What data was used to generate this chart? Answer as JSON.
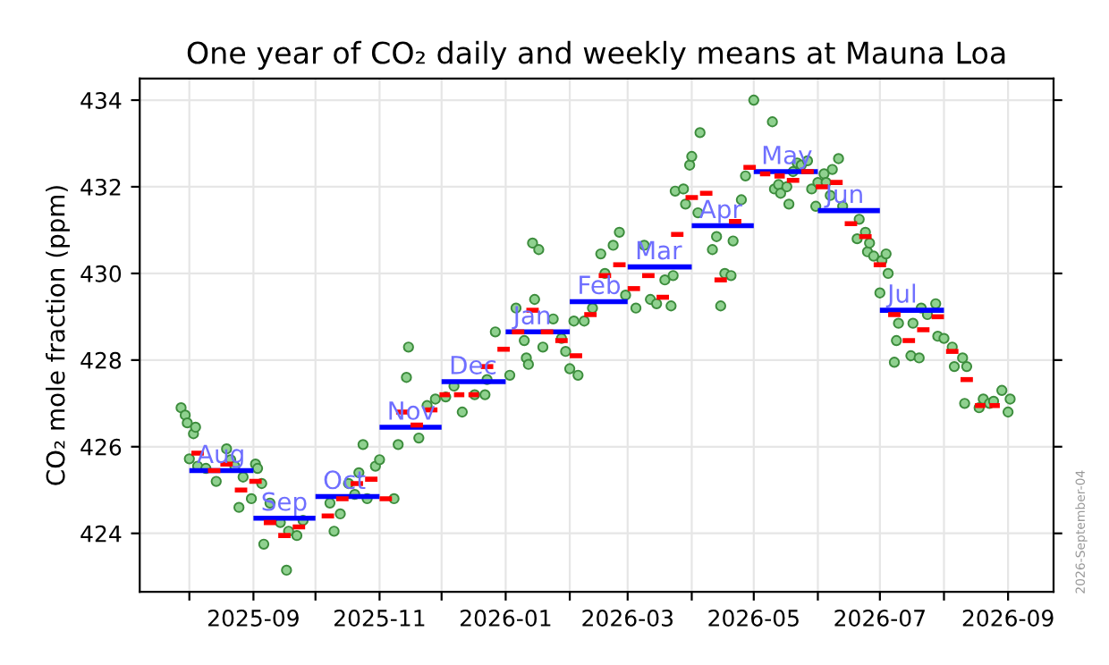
{
  "chart_data": {
    "type": "scatter",
    "title": "One year of CO₂ daily and weekly means at Mauna Loa",
    "ylabel": "CO₂ mole fraction (ppm)",
    "xlim": [
      "2025-07-08",
      "2026-09-23"
    ],
    "ylim": [
      422.65,
      434.5
    ],
    "xticks": [
      {
        "value": "2025-08-01",
        "label": null
      },
      {
        "value": "2025-09-01",
        "label": "2025-09"
      },
      {
        "value": "2025-10-01",
        "label": null
      },
      {
        "value": "2025-11-01",
        "label": "2025-11"
      },
      {
        "value": "2025-12-01",
        "label": null
      },
      {
        "value": "2026-01-01",
        "label": "2026-01"
      },
      {
        "value": "2026-02-01",
        "label": null
      },
      {
        "value": "2026-03-01",
        "label": "2026-03"
      },
      {
        "value": "2026-04-01",
        "label": null
      },
      {
        "value": "2026-05-01",
        "label": "2026-05"
      },
      {
        "value": "2026-06-01",
        "label": null
      },
      {
        "value": "2026-07-01",
        "label": "2026-07"
      },
      {
        "value": "2026-08-01",
        "label": null
      },
      {
        "value": "2026-09-01",
        "label": "2026-09"
      }
    ],
    "yticks": [
      424,
      426,
      428,
      430,
      432,
      434
    ],
    "grid": true,
    "line_style": "solid",
    "series": [
      {
        "marker": "circle",
        "color": "#8fd18f",
        "x": [
          "2025-07-28",
          "2025-07-30",
          "2025-07-31",
          "2025-08-01",
          "2025-08-03",
          "2025-08-04",
          "2025-08-05",
          "2025-08-09",
          "2025-08-14",
          "2025-08-19",
          "2025-08-21",
          "2025-08-23",
          "2025-08-25",
          "2025-08-27",
          "2025-08-31",
          "2025-09-02",
          "2025-09-03",
          "2025-09-05",
          "2025-09-06",
          "2025-09-09",
          "2025-09-14",
          "2025-09-17",
          "2025-09-18",
          "2025-09-22",
          "2025-09-25",
          "2025-10-08",
          "2025-10-10",
          "2025-10-13",
          "2025-10-17",
          "2025-10-20",
          "2025-10-22",
          "2025-10-24",
          "2025-10-26",
          "2025-10-30",
          "2025-11-01",
          "2025-11-08",
          "2025-11-10",
          "2025-11-14",
          "2025-11-15",
          "2025-11-20",
          "2025-11-24",
          "2025-11-28",
          "2025-12-03",
          "2025-12-07",
          "2025-12-11",
          "2025-12-17",
          "2025-12-22",
          "2025-12-23",
          "2025-12-27",
          "2026-01-03",
          "2026-01-06",
          "2026-01-10",
          "2026-01-11",
          "2026-01-12",
          "2026-01-14",
          "2026-01-15",
          "2026-01-17",
          "2026-01-19",
          "2026-01-24",
          "2026-01-28",
          "2026-01-30",
          "2026-02-01",
          "2026-02-03",
          "2026-02-05",
          "2026-02-08",
          "2026-02-12",
          "2026-02-16",
          "2026-02-18",
          "2026-02-22",
          "2026-02-25",
          "2026-02-28",
          "2026-03-05",
          "2026-03-09",
          "2026-03-12",
          "2026-03-15",
          "2026-03-19",
          "2026-03-22",
          "2026-03-23",
          "2026-03-24",
          "2026-03-28",
          "2026-03-29",
          "2026-03-31",
          "2026-04-01",
          "2026-04-04",
          "2026-04-05",
          "2026-04-11",
          "2026-04-13",
          "2026-04-15",
          "2026-04-17",
          "2026-04-20",
          "2026-04-21",
          "2026-04-25",
          "2026-04-27",
          "2026-05-01",
          "2026-05-10",
          "2026-05-11",
          "2026-05-13",
          "2026-05-14",
          "2026-05-17",
          "2026-05-18",
          "2026-05-20",
          "2026-05-22",
          "2026-05-24",
          "2026-05-27",
          "2026-05-29",
          "2026-05-31",
          "2026-06-01",
          "2026-06-04",
          "2026-06-05",
          "2026-06-07",
          "2026-06-08",
          "2026-06-11",
          "2026-06-13",
          "2026-06-20",
          "2026-06-21",
          "2026-06-24",
          "2026-06-25",
          "2026-06-26",
          "2026-06-28",
          "2026-07-01",
          "2026-07-02",
          "2026-07-04",
          "2026-07-05",
          "2026-07-08",
          "2026-07-09",
          "2026-07-10",
          "2026-07-16",
          "2026-07-17",
          "2026-07-20",
          "2026-07-21",
          "2026-07-24",
          "2026-07-28",
          "2026-07-29",
          "2026-08-01",
          "2026-08-05",
          "2026-08-06",
          "2026-08-10",
          "2026-08-11",
          "2026-08-12",
          "2026-08-18",
          "2026-08-20",
          "2026-08-23",
          "2026-08-25",
          "2026-08-29",
          "2026-09-01",
          "2026-09-02"
        ],
        "values": [
          426.9,
          426.73,
          426.55,
          425.72,
          426.3,
          426.45,
          425.55,
          425.5,
          425.2,
          425.95,
          425.7,
          425.55,
          424.6,
          425.3,
          424.8,
          425.6,
          425.5,
          425.15,
          423.75,
          424.7,
          424.25,
          423.15,
          424.05,
          423.95,
          424.3,
          424.7,
          424.05,
          424.45,
          425.15,
          424.9,
          425.4,
          426.05,
          424.8,
          425.55,
          425.7,
          424.8,
          426.05,
          427.6,
          428.3,
          426.2,
          426.95,
          427.1,
          427.15,
          427.4,
          426.8,
          427.2,
          427.2,
          427.55,
          428.65,
          427.65,
          429.2,
          428.45,
          428.05,
          427.9,
          430.7,
          429.4,
          430.55,
          428.3,
          428.95,
          428.5,
          428.2,
          427.8,
          428.9,
          427.65,
          428.9,
          429.2,
          430.45,
          430.0,
          430.65,
          430.95,
          429.5,
          429.2,
          430.65,
          429.4,
          429.3,
          429.85,
          429.25,
          429.95,
          431.9,
          431.95,
          431.6,
          432.5,
          432.7,
          431.4,
          433.25,
          430.55,
          430.85,
          429.25,
          430.0,
          429.95,
          430.75,
          431.7,
          432.25,
          434.0,
          433.5,
          431.95,
          432.05,
          431.85,
          432.0,
          431.6,
          432.35,
          432.55,
          432.5,
          432.6,
          431.95,
          431.55,
          432.1,
          432.3,
          432.1,
          431.8,
          432.4,
          432.65,
          431.55,
          430.8,
          431.25,
          430.95,
          430.5,
          430.7,
          430.4,
          429.55,
          430.3,
          430.45,
          430.0,
          427.95,
          428.45,
          428.85,
          428.1,
          428.85,
          428.05,
          429.2,
          429.05,
          429.3,
          428.55,
          428.5,
          428.3,
          427.85,
          428.05,
          427.0,
          427.85,
          426.9,
          427.1,
          427.0,
          427.05,
          427.3,
          426.8,
          427.1
        ]
      },
      {
        "type": "line",
        "color": "#ff0000",
        "x": [
          "2025-08-02",
          "2025-08-08"
        ],
        "values": [
          425.85,
          425.85
        ]
      },
      {
        "type": "line",
        "color": "#ff0000",
        "x": [
          "2025-08-10",
          "2025-08-16"
        ],
        "values": [
          425.45,
          425.45
        ]
      },
      {
        "type": "line",
        "color": "#ff0000",
        "x": [
          "2025-08-16",
          "2025-08-22"
        ],
        "values": [
          425.6,
          425.6
        ]
      },
      {
        "type": "line",
        "color": "#ff0000",
        "x": [
          "2025-08-23",
          "2025-08-29"
        ],
        "values": [
          425.0,
          425.0
        ]
      },
      {
        "type": "line",
        "color": "#ff0000",
        "x": [
          "2025-08-30",
          "2025-09-05"
        ],
        "values": [
          425.2,
          425.2
        ]
      },
      {
        "type": "line",
        "color": "#ff0000",
        "x": [
          "2025-09-06",
          "2025-09-12"
        ],
        "values": [
          424.25,
          424.25
        ]
      },
      {
        "type": "line",
        "color": "#ff0000",
        "x": [
          "2025-09-13",
          "2025-09-19"
        ],
        "values": [
          423.95,
          423.95
        ]
      },
      {
        "type": "line",
        "color": "#ff0000",
        "x": [
          "2025-09-20",
          "2025-09-26"
        ],
        "values": [
          424.15,
          424.15
        ]
      },
      {
        "type": "line",
        "color": "#ff0000",
        "x": [
          "2025-10-04",
          "2025-10-10"
        ],
        "values": [
          424.4,
          424.4
        ]
      },
      {
        "type": "line",
        "color": "#ff0000",
        "x": [
          "2025-10-11",
          "2025-10-17"
        ],
        "values": [
          424.8,
          424.8
        ]
      },
      {
        "type": "line",
        "color": "#ff0000",
        "x": [
          "2025-10-18",
          "2025-10-24"
        ],
        "values": [
          425.15,
          425.15
        ]
      },
      {
        "type": "line",
        "color": "#ff0000",
        "x": [
          "2025-10-25",
          "2025-10-31"
        ],
        "values": [
          425.25,
          425.25
        ]
      },
      {
        "type": "line",
        "color": "#ff0000",
        "x": [
          "2025-11-01",
          "2025-11-07"
        ],
        "values": [
          424.8,
          424.8
        ]
      },
      {
        "type": "line",
        "color": "#ff0000",
        "x": [
          "2025-11-09",
          "2025-11-15"
        ],
        "values": [
          426.8,
          426.8
        ]
      },
      {
        "type": "line",
        "color": "#ff0000",
        "x": [
          "2025-11-16",
          "2025-11-22"
        ],
        "values": [
          426.5,
          426.5
        ]
      },
      {
        "type": "line",
        "color": "#ff0000",
        "x": [
          "2025-11-23",
          "2025-11-29"
        ],
        "values": [
          426.85,
          426.85
        ]
      },
      {
        "type": "line",
        "color": "#ff0000",
        "x": [
          "2025-11-30",
          "2025-12-05"
        ],
        "values": [
          427.2,
          427.2
        ]
      },
      {
        "type": "line",
        "color": "#ff0000",
        "x": [
          "2025-12-07",
          "2025-12-12"
        ],
        "values": [
          427.2,
          427.2
        ]
      },
      {
        "type": "line",
        "color": "#ff0000",
        "x": [
          "2025-12-14",
          "2025-12-19"
        ],
        "values": [
          427.2,
          427.2
        ]
      },
      {
        "type": "line",
        "color": "#ff0000",
        "x": [
          "2025-12-20",
          "2025-12-26"
        ],
        "values": [
          427.85,
          427.85
        ]
      },
      {
        "type": "line",
        "color": "#ff0000",
        "x": [
          "2025-12-28",
          "2026-01-03"
        ],
        "values": [
          428.25,
          428.25
        ]
      },
      {
        "type": "line",
        "color": "#ff0000",
        "x": [
          "2026-01-04",
          "2026-01-10"
        ],
        "values": [
          428.65,
          428.65
        ]
      },
      {
        "type": "line",
        "color": "#ff0000",
        "x": [
          "2026-01-11",
          "2026-01-17"
        ],
        "values": [
          429.15,
          429.15
        ]
      },
      {
        "type": "line",
        "color": "#ff0000",
        "x": [
          "2026-01-18",
          "2026-01-24"
        ],
        "values": [
          428.65,
          428.65
        ]
      },
      {
        "type": "line",
        "color": "#ff0000",
        "x": [
          "2026-01-25",
          "2026-01-31"
        ],
        "values": [
          428.45,
          428.45
        ]
      },
      {
        "type": "line",
        "color": "#ff0000",
        "x": [
          "2026-02-01",
          "2026-02-07"
        ],
        "values": [
          428.1,
          428.1
        ]
      },
      {
        "type": "line",
        "color": "#ff0000",
        "x": [
          "2026-02-08",
          "2026-02-14"
        ],
        "values": [
          429.05,
          429.05
        ]
      },
      {
        "type": "line",
        "color": "#ff0000",
        "x": [
          "2026-02-15",
          "2026-02-21"
        ],
        "values": [
          429.95,
          429.95
        ]
      },
      {
        "type": "line",
        "color": "#ff0000",
        "x": [
          "2026-02-22",
          "2026-02-28"
        ],
        "values": [
          430.2,
          430.2
        ]
      },
      {
        "type": "line",
        "color": "#ff0000",
        "x": [
          "2026-03-01",
          "2026-03-07"
        ],
        "values": [
          429.65,
          429.65
        ]
      },
      {
        "type": "line",
        "color": "#ff0000",
        "x": [
          "2026-03-08",
          "2026-03-14"
        ],
        "values": [
          429.95,
          429.95
        ]
      },
      {
        "type": "line",
        "color": "#ff0000",
        "x": [
          "2026-03-15",
          "2026-03-21"
        ],
        "values": [
          429.45,
          429.45
        ]
      },
      {
        "type": "line",
        "color": "#ff0000",
        "x": [
          "2026-03-22",
          "2026-03-28"
        ],
        "values": [
          430.9,
          430.9
        ]
      },
      {
        "type": "line",
        "color": "#ff0000",
        "x": [
          "2026-03-29",
          "2026-04-04"
        ],
        "values": [
          431.75,
          431.75
        ]
      },
      {
        "type": "line",
        "color": "#ff0000",
        "x": [
          "2026-04-05",
          "2026-04-11"
        ],
        "values": [
          431.85,
          431.85
        ]
      },
      {
        "type": "line",
        "color": "#ff0000",
        "x": [
          "2026-04-12",
          "2026-04-18"
        ],
        "values": [
          429.85,
          429.85
        ]
      },
      {
        "type": "line",
        "color": "#ff0000",
        "x": [
          "2026-04-19",
          "2026-04-25"
        ],
        "values": [
          431.2,
          431.2
        ]
      },
      {
        "type": "line",
        "color": "#ff0000",
        "x": [
          "2026-04-26",
          "2026-05-02"
        ],
        "values": [
          432.45,
          432.45
        ]
      },
      {
        "type": "line",
        "color": "#ff0000",
        "x": [
          "2026-05-04",
          "2026-05-09"
        ],
        "values": [
          432.3,
          432.3
        ]
      },
      {
        "type": "line",
        "color": "#ff0000",
        "x": [
          "2026-05-11",
          "2026-05-16"
        ],
        "values": [
          432.25,
          432.25
        ]
      },
      {
        "type": "line",
        "color": "#ff0000",
        "x": [
          "2026-05-17",
          "2026-05-23"
        ],
        "values": [
          432.15,
          432.15
        ]
      },
      {
        "type": "line",
        "color": "#ff0000",
        "x": [
          "2026-05-24",
          "2026-05-30"
        ],
        "values": [
          432.35,
          432.35
        ]
      },
      {
        "type": "line",
        "color": "#ff0000",
        "x": [
          "2026-05-31",
          "2026-06-06"
        ],
        "values": [
          432.0,
          432.0
        ]
      },
      {
        "type": "line",
        "color": "#ff0000",
        "x": [
          "2026-06-07",
          "2026-06-13"
        ],
        "values": [
          432.1,
          432.1
        ]
      },
      {
        "type": "line",
        "color": "#ff0000",
        "x": [
          "2026-06-14",
          "2026-06-20"
        ],
        "values": [
          431.15,
          431.15
        ]
      },
      {
        "type": "line",
        "color": "#ff0000",
        "x": [
          "2026-06-21",
          "2026-06-27"
        ],
        "values": [
          430.85,
          430.85
        ]
      },
      {
        "type": "line",
        "color": "#ff0000",
        "x": [
          "2026-06-28",
          "2026-07-04"
        ],
        "values": [
          430.2,
          430.2
        ]
      },
      {
        "type": "line",
        "color": "#ff0000",
        "x": [
          "2026-07-05",
          "2026-07-11"
        ],
        "values": [
          429.05,
          429.05
        ]
      },
      {
        "type": "line",
        "color": "#ff0000",
        "x": [
          "2026-07-12",
          "2026-07-18"
        ],
        "values": [
          428.45,
          428.45
        ]
      },
      {
        "type": "line",
        "color": "#ff0000",
        "x": [
          "2026-07-19",
          "2026-07-25"
        ],
        "values": [
          428.7,
          428.7
        ]
      },
      {
        "type": "line",
        "color": "#ff0000",
        "x": [
          "2026-07-26",
          "2026-08-01"
        ],
        "values": [
          429.0,
          429.0
        ]
      },
      {
        "type": "line",
        "color": "#ff0000",
        "x": [
          "2026-08-02",
          "2026-08-08"
        ],
        "values": [
          428.2,
          428.2
        ]
      },
      {
        "type": "line",
        "color": "#ff0000",
        "x": [
          "2026-08-09",
          "2026-08-15"
        ],
        "values": [
          427.55,
          427.55
        ]
      },
      {
        "type": "line",
        "color": "#ff0000",
        "x": [
          "2026-08-16",
          "2026-08-21"
        ],
        "values": [
          426.95,
          426.95
        ]
      },
      {
        "type": "line",
        "color": "#ff0000",
        "x": [
          "2026-08-23",
          "2026-08-28"
        ],
        "values": [
          426.95,
          426.95
        ]
      },
      {
        "type": "line",
        "color": "#0000ff",
        "x": [
          "2025-08-01",
          "2025-09-01"
        ],
        "values": [
          425.45,
          425.45
        ]
      },
      {
        "type": "line",
        "color": "#0000ff",
        "x": [
          "2025-09-01",
          "2025-10-01"
        ],
        "values": [
          424.35,
          424.35
        ]
      },
      {
        "type": "line",
        "color": "#0000ff",
        "x": [
          "2025-10-01",
          "2025-11-01"
        ],
        "values": [
          424.85,
          424.85
        ]
      },
      {
        "type": "line",
        "color": "#0000ff",
        "x": [
          "2025-11-01",
          "2025-12-01"
        ],
        "values": [
          426.45,
          426.45
        ]
      },
      {
        "type": "line",
        "color": "#0000ff",
        "x": [
          "2025-12-01",
          "2026-01-01"
        ],
        "values": [
          427.5,
          427.5
        ]
      },
      {
        "type": "line",
        "color": "#0000ff",
        "x": [
          "2026-01-01",
          "2026-02-01"
        ],
        "values": [
          428.65,
          428.65
        ]
      },
      {
        "type": "line",
        "color": "#0000ff",
        "x": [
          "2026-02-01",
          "2026-03-01"
        ],
        "values": [
          429.35,
          429.35
        ]
      },
      {
        "type": "line",
        "color": "#0000ff",
        "x": [
          "2026-03-01",
          "2026-04-01"
        ],
        "values": [
          430.15,
          430.15
        ]
      },
      {
        "type": "line",
        "color": "#0000ff",
        "x": [
          "2026-04-01",
          "2026-05-01"
        ],
        "values": [
          431.1,
          431.1
        ]
      },
      {
        "type": "line",
        "color": "#0000ff",
        "x": [
          "2026-05-01",
          "2026-06-01"
        ],
        "values": [
          432.35,
          432.35
        ]
      },
      {
        "type": "line",
        "color": "#0000ff",
        "x": [
          "2026-06-01",
          "2026-07-01"
        ],
        "values": [
          431.45,
          431.45
        ]
      },
      {
        "type": "line",
        "color": "#0000ff",
        "x": [
          "2026-07-01",
          "2026-08-01"
        ],
        "values": [
          429.15,
          429.15
        ]
      }
    ],
    "annotations": [
      {
        "text": "Aug",
        "x": "2025-08-01",
        "y": 425.45
      },
      {
        "text": "Sep",
        "x": "2025-09-01",
        "y": 424.35
      },
      {
        "text": "Oct",
        "x": "2025-10-01",
        "y": 424.85
      },
      {
        "text": "Nov",
        "x": "2025-11-01",
        "y": 426.45
      },
      {
        "text": "Dec",
        "x": "2025-12-01",
        "y": 427.5
      },
      {
        "text": "Jan",
        "x": "2026-01-01",
        "y": 428.65
      },
      {
        "text": "Feb",
        "x": "2026-02-01",
        "y": 429.35
      },
      {
        "text": "Mar",
        "x": "2026-03-01",
        "y": 430.15
      },
      {
        "text": "Apr",
        "x": "2026-04-01",
        "y": 431.1
      },
      {
        "text": "May",
        "x": "2026-05-01",
        "y": 432.35
      },
      {
        "text": "Jun",
        "x": "2026-06-01",
        "y": 431.45
      },
      {
        "text": "Jul",
        "x": "2026-07-01",
        "y": 429.15
      },
      "2026-September-04"
    ]
  }
}
